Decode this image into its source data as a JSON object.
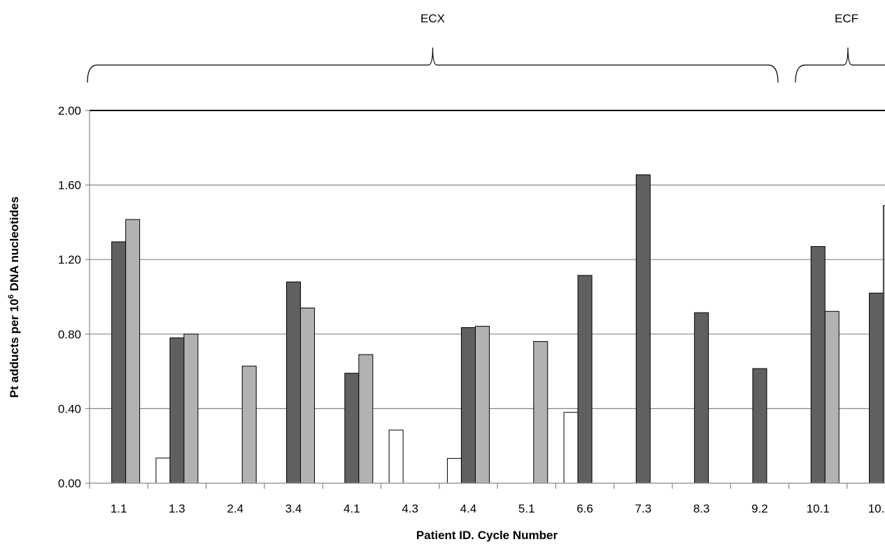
{
  "chart_data": {
    "type": "bar",
    "xlabel": "Patient ID. Cycle Number",
    "ylabel_parts": {
      "before": "Pt adducts per 10",
      "superscript": "6",
      "after": " DNA nucleotides"
    },
    "ylim": [
      0,
      2.0
    ],
    "yticks": [
      "0.00",
      "0.40",
      "0.80",
      "1.20",
      "1.60",
      "2.00"
    ],
    "grid": true,
    "legend": "none",
    "categories": [
      "1.1",
      "1.3",
      "2.4",
      "3.4",
      "4.1",
      "4.3",
      "4.4",
      "5.1",
      "6.6",
      "7.3",
      "8.3",
      "9.2",
      "10.1",
      "10."
    ],
    "series": [
      {
        "color": "#ffffff",
        "values": [
          null,
          0.135,
          null,
          null,
          null,
          0.285,
          0.133,
          null,
          0.38,
          null,
          null,
          null,
          null,
          null
        ]
      },
      {
        "color": "#606060",
        "values": [
          1.295,
          0.78,
          null,
          1.08,
          0.59,
          null,
          0.835,
          null,
          1.115,
          1.655,
          0.915,
          0.615,
          1.27,
          1.02
        ]
      },
      {
        "color": "#b2b2b2",
        "values": [
          1.415,
          0.8,
          0.628,
          0.94,
          0.69,
          null,
          0.842,
          0.76,
          null,
          null,
          null,
          null,
          0.922,
          1.49
        ]
      }
    ],
    "groups": [
      {
        "label": "ECX",
        "start_category": "1.1",
        "end_category": "9.2"
      },
      {
        "label": "ECF",
        "start_category": "10.1",
        "end_category": "10."
      }
    ]
  }
}
